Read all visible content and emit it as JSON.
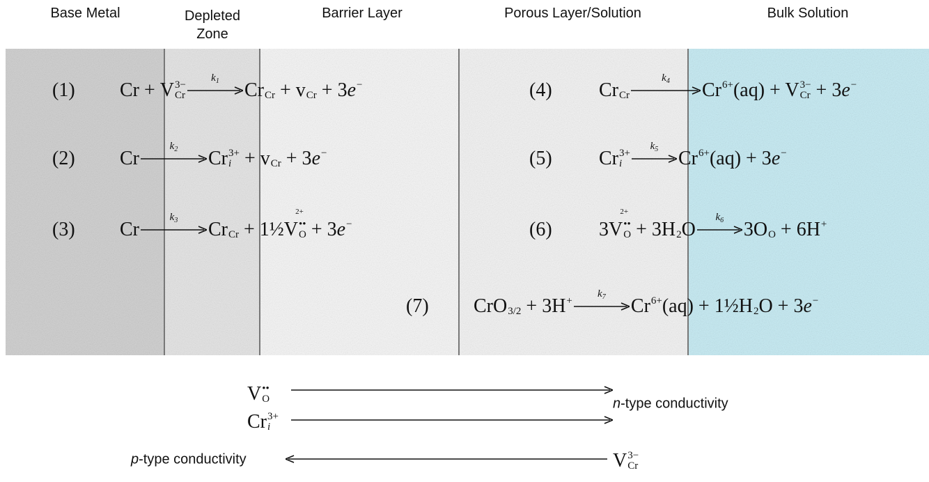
{
  "zones": [
    "Base Metal",
    "Depleted Zone",
    "Barrier Layer",
    "Porous Layer/Solution",
    "Bulk Solution"
  ],
  "equations": [
    {
      "label": "(1)",
      "left": [
        {
          "b": "Cr + "
        },
        {
          "b": "V",
          "sup": "3−",
          "sub": "Cr"
        }
      ],
      "rate": {
        "b": "k",
        "sub": "1"
      },
      "right": [
        {
          "b": "Cr",
          "sub": "Cr"
        },
        {
          "b": " + v",
          "sub": "Cr"
        },
        {
          "b": " + 3"
        },
        {
          "b": "e",
          "sup": "−",
          "italic": true
        }
      ]
    },
    {
      "label": "(2)",
      "left": [
        {
          "b": "Cr"
        }
      ],
      "rate": {
        "b": "k",
        "sub": "2"
      },
      "right": [
        {
          "b": "Cr",
          "sub": "i",
          "sup": "3+"
        },
        {
          "b": " + v",
          "sub": "Cr"
        },
        {
          "b": " + 3"
        },
        {
          "b": "e",
          "sup": "−",
          "italic": true
        }
      ]
    },
    {
      "label": "(3)",
      "left": [
        {
          "b": "Cr"
        }
      ],
      "rate": {
        "b": "k",
        "sub": "3"
      },
      "right": [
        {
          "b": "Cr",
          "sub": "Cr"
        },
        {
          "b": " + 1½V",
          "sub": "O",
          "sup": "••",
          "over": "2+"
        },
        {
          "b": " + 3"
        },
        {
          "b": "e",
          "sup": "−",
          "italic": true
        }
      ]
    },
    {
      "label": "(4)",
      "left": [
        {
          "b": "Cr",
          "sub": "Cr"
        }
      ],
      "rate": {
        "b": "k",
        "sub": "4"
      },
      "right": [
        {
          "b": "Cr",
          "sup": "6+"
        },
        {
          "b": "(aq) + V",
          "sup": "3−",
          "sub": "Cr"
        },
        {
          "b": " + 3"
        },
        {
          "b": "e",
          "sup": "−",
          "italic": true
        }
      ]
    },
    {
      "label": "(5)",
      "left": [
        {
          "b": "Cr",
          "sub": "i",
          "sup": "3+"
        }
      ],
      "rate": {
        "b": "k",
        "sub": "5"
      },
      "right": [
        {
          "b": "Cr",
          "sup": "6+"
        },
        {
          "b": "(aq) + 3"
        },
        {
          "b": "e",
          "sup": "−",
          "italic": true
        }
      ]
    },
    {
      "label": "(6)",
      "left": [
        {
          "b": "3V",
          "sub": "O",
          "sup": "••",
          "over": "2+"
        },
        {
          "b": " + 3H",
          "sub": "2"
        },
        {
          "b": "O"
        }
      ],
      "rate": {
        "b": "k",
        "sub": "6"
      },
      "right": [
        {
          "b": "3O",
          "sub": "O"
        },
        {
          "b": " + 6H",
          "sup": "+"
        }
      ]
    },
    {
      "label": "(7)",
      "left": [
        {
          "b": "CrO",
          "sub": "3/2"
        },
        {
          "b": " + 3H",
          "sup": "+"
        }
      ],
      "rate": {
        "b": "k",
        "sub": "7"
      },
      "right": [
        {
          "b": "Cr",
          "sup": "6+"
        },
        {
          "b": "(aq) + 1½H",
          "sub": "2"
        },
        {
          "b": "O + 3"
        },
        {
          "b": "e",
          "sup": "−",
          "italic": true
        }
      ]
    }
  ],
  "conductivity": {
    "n_species": [
      {
        "b": "V",
        "sup": "••",
        "sub": "O"
      },
      {
        "b": "Cr",
        "sup": "3+",
        "sub": "i"
      }
    ],
    "n_label": {
      "italic": "n",
      "text": "-type conductivity"
    },
    "p_species": {
      "b": "V",
      "sup": "3−",
      "sub": "Cr"
    },
    "p_label": {
      "italic": "p",
      "text": "-type conductivity"
    }
  }
}
